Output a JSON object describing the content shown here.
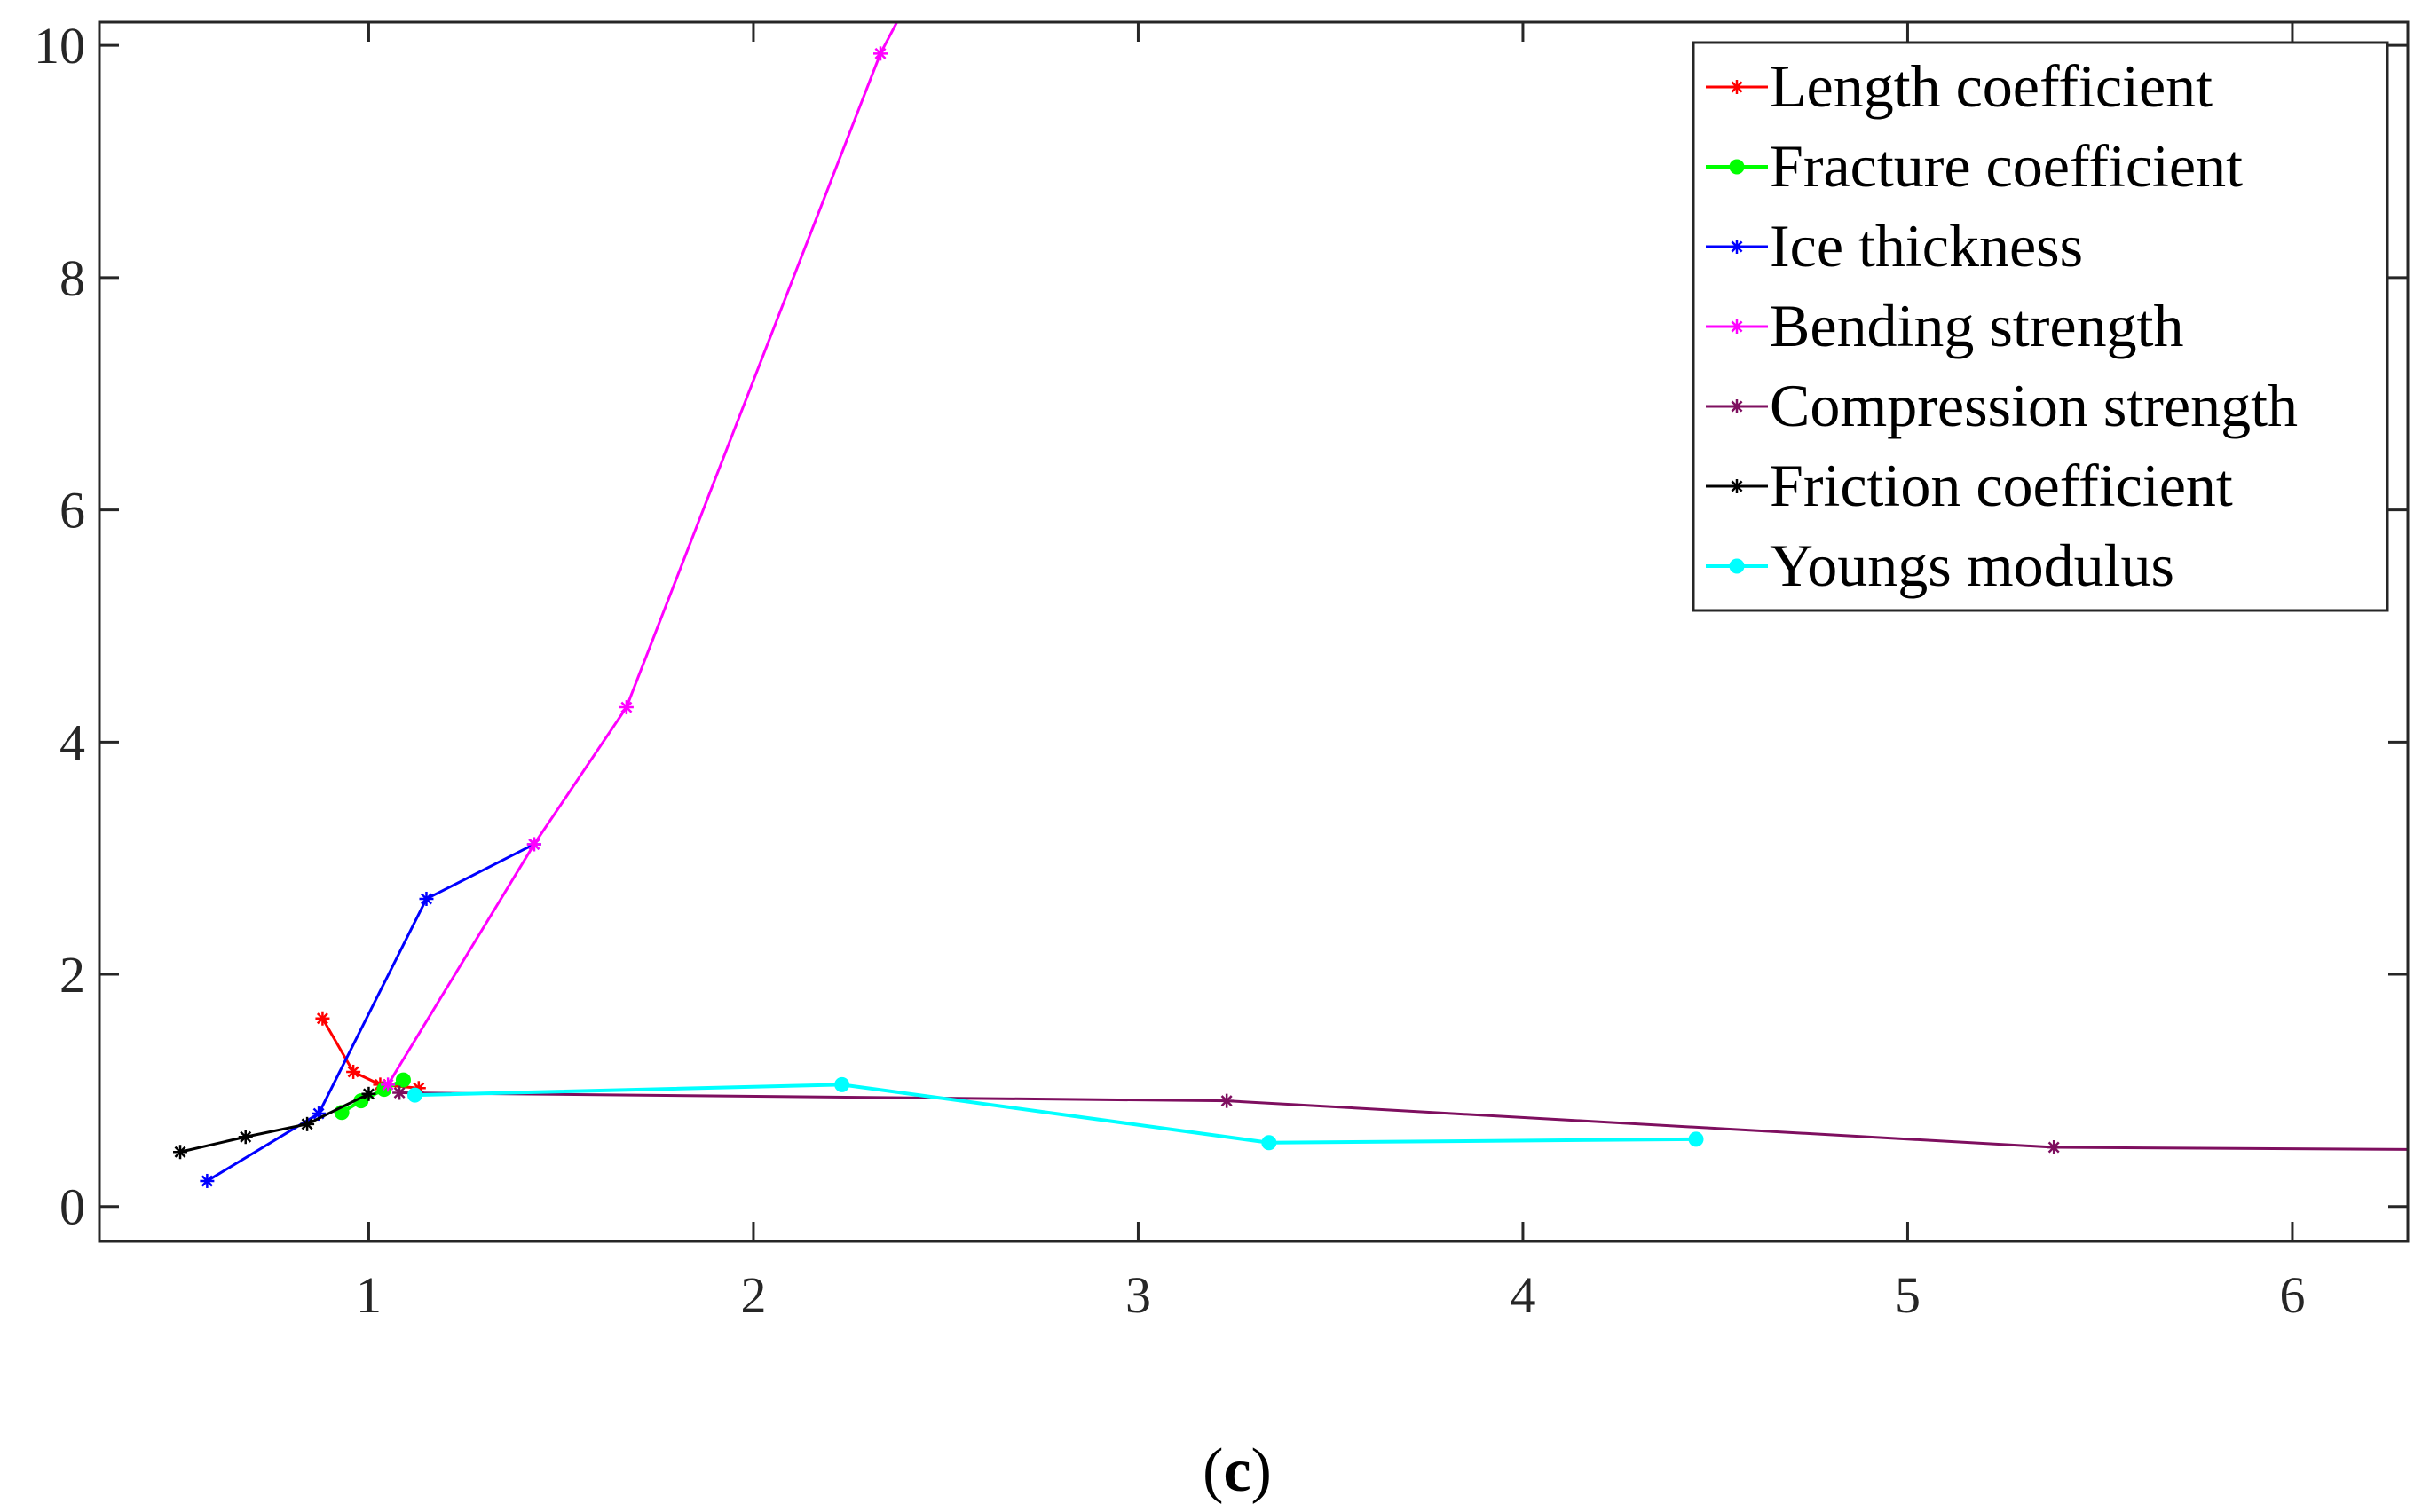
{
  "caption": {
    "open": "(",
    "letter": "c",
    "close": ")"
  },
  "chart_data": {
    "type": "line",
    "title": "",
    "xlabel": "",
    "ylabel": "",
    "xlim": [
      0.3,
      6.3
    ],
    "ylim": [
      -0.3,
      10.2
    ],
    "xticks": [
      1,
      2,
      3,
      4,
      5,
      6
    ],
    "yticks": [
      0,
      2,
      4,
      6,
      8,
      10
    ],
    "grid": false,
    "legend_position": "top-right",
    "series": [
      {
        "name": "Length coefficient",
        "color": "#ff0000",
        "marker": "asterisk",
        "points": [
          [
            0.88,
            1.62
          ],
          [
            0.96,
            1.16
          ],
          [
            1.03,
            1.05
          ],
          [
            1.13,
            1.02
          ]
        ]
      },
      {
        "name": "Fracture coefficient",
        "color": "#00ff00",
        "marker": "dot",
        "points": [
          [
            0.93,
            0.81
          ],
          [
            0.98,
            0.91
          ],
          [
            1.04,
            1.01
          ],
          [
            1.09,
            1.09
          ]
        ]
      },
      {
        "name": "Ice thickness",
        "color": "#0000ff",
        "marker": "asterisk",
        "points": [
          [
            0.58,
            0.22
          ],
          [
            0.87,
            0.8
          ],
          [
            1.15,
            2.65
          ],
          [
            1.43,
            3.12
          ]
        ]
      },
      {
        "name": "Bending strength",
        "color": "#ff00ff",
        "marker": "asterisk",
        "points": [
          [
            1.05,
            1.05
          ],
          [
            1.43,
            3.12
          ],
          [
            1.67,
            4.3
          ],
          [
            2.33,
            9.93
          ],
          [
            2.5,
            11.0
          ]
        ]
      },
      {
        "name": "Compression strength",
        "color": "#7e0f5f",
        "marker": "asterisk",
        "points": [
          [
            1.08,
            0.98
          ],
          [
            3.23,
            0.91
          ],
          [
            5.38,
            0.51
          ],
          [
            6.4,
            0.49
          ]
        ]
      },
      {
        "name": "Friction coefficient",
        "color": "#000000",
        "marker": "asterisk",
        "points": [
          [
            0.51,
            0.47
          ],
          [
            0.68,
            0.6
          ],
          [
            0.84,
            0.71
          ],
          [
            1.0,
            0.97
          ]
        ]
      },
      {
        "name": "Youngs modulus",
        "color": "#00ffff",
        "marker": "dot",
        "points": [
          [
            1.12,
            0.96
          ],
          [
            2.23,
            1.05
          ],
          [
            3.34,
            0.55
          ],
          [
            4.45,
            0.58
          ]
        ]
      }
    ]
  }
}
